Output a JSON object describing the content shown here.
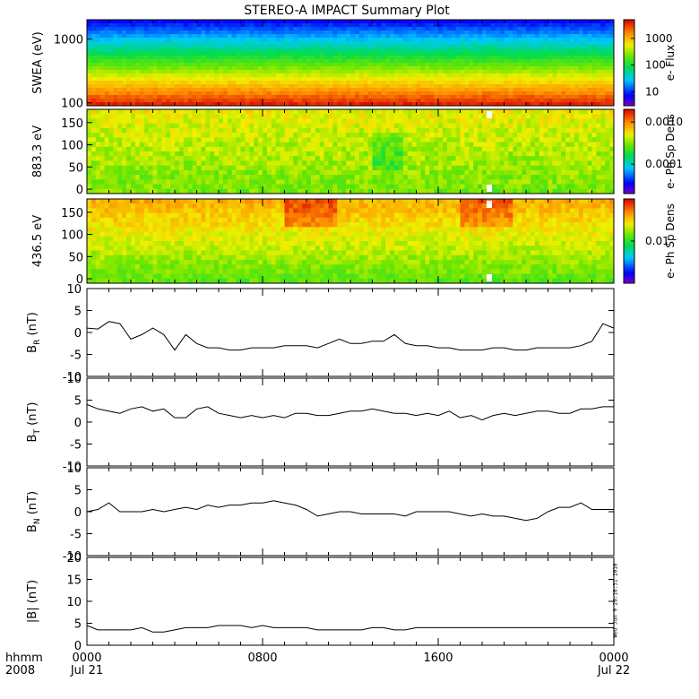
{
  "title": "STEREO-A IMPACT Summary Plot",
  "x_axis": {
    "row1_label": "hhmm",
    "row2_label": "2008",
    "ticks": [
      {
        "t": 0,
        "label": "0000",
        "date": "Jul 21"
      },
      {
        "t": 8,
        "label": "0800",
        "date": ""
      },
      {
        "t": 16,
        "label": "1600",
        "date": ""
      },
      {
        "t": 24,
        "label": "0000",
        "date": "Jul 22"
      }
    ]
  },
  "timestamp": "Wed Jun  9 20:16:31 2010",
  "chart_data": [
    {
      "type": "heatmap",
      "id": "swea",
      "ylabel": "SWEA (eV)",
      "yscale": "log",
      "ylim": [
        90,
        2000
      ],
      "yticks": [
        {
          "v": 100,
          "label": "100"
        },
        {
          "v": 1000,
          "label": "1000"
        }
      ],
      "colorbar": {
        "label": "e- Flux",
        "scale": "log",
        "range": [
          3,
          5000
        ],
        "ticks": [
          {
            "v": 10,
            "label": "10"
          },
          {
            "v": 100,
            "label": "100"
          },
          {
            "v": 1000,
            "label": "1000"
          }
        ]
      },
      "xlim": [
        0,
        24
      ]
    },
    {
      "type": "heatmap",
      "id": "pad883",
      "ylabel": "883.3 eV",
      "ylim": [
        -10,
        180
      ],
      "yticks": [
        {
          "v": 0,
          "label": "0"
        },
        {
          "v": 50,
          "label": "50"
        },
        {
          "v": 100,
          "label": "100"
        },
        {
          "v": 150,
          "label": "150"
        }
      ],
      "colorbar": {
        "label": "e- Ph Sp Dens",
        "scale": "log",
        "range": [
          2e-05,
          0.002
        ],
        "ticks": [
          {
            "v": 0.0001,
            "label": "0.0001"
          },
          {
            "v": 0.001,
            "label": "0.0010"
          }
        ]
      },
      "gap_hours": [
        18.2,
        18.45
      ],
      "xlim": [
        0,
        24
      ]
    },
    {
      "type": "heatmap",
      "id": "pad436",
      "ylabel": "436.5 eV",
      "ylim": [
        -10,
        180
      ],
      "yticks": [
        {
          "v": 0,
          "label": "0"
        },
        {
          "v": 50,
          "label": "50"
        },
        {
          "v": 100,
          "label": "100"
        },
        {
          "v": 150,
          "label": "150"
        }
      ],
      "colorbar": {
        "label": "e- Ph Sp Dens",
        "scale": "log",
        "range": [
          0.002,
          0.05
        ],
        "ticks": [
          {
            "v": 0.01,
            "label": "0.01"
          }
        ]
      },
      "gap_hours": [
        18.2,
        18.45
      ],
      "xlim": [
        0,
        24
      ]
    },
    {
      "type": "line",
      "id": "br",
      "ylabel": "B",
      "ylabel_sub": "R",
      "ylabel_unit": "(nT)",
      "ylim": [
        -10,
        10
      ],
      "yticks": [
        -10,
        -5,
        0,
        5,
        10
      ],
      "xlim": [
        0,
        24
      ],
      "x": [
        0,
        0.5,
        1,
        1.5,
        2,
        2.5,
        3,
        3.5,
        4,
        4.5,
        5,
        5.5,
        6,
        6.5,
        7,
        7.5,
        8,
        8.5,
        9,
        9.5,
        10,
        10.5,
        11,
        11.5,
        12,
        12.5,
        13,
        13.5,
        14,
        14.5,
        15,
        15.5,
        16,
        16.5,
        17,
        17.5,
        18,
        18.5,
        19,
        19.5,
        20,
        20.5,
        21,
        21.5,
        22,
        22.5,
        23,
        23.5,
        24
      ],
      "y": [
        1,
        0.8,
        2.5,
        2,
        -1.5,
        -0.5,
        1,
        -0.5,
        -4,
        -0.5,
        -2.5,
        -3.5,
        -3.5,
        -4,
        -4,
        -3.5,
        -3.5,
        -3.5,
        -3,
        -3,
        -3,
        -3.5,
        -2.5,
        -1.5,
        -2.5,
        -2.5,
        -2,
        -2,
        -0.5,
        -2.5,
        -3,
        -3,
        -3.5,
        -3.5,
        -4,
        -4,
        -4,
        -3.5,
        -3.5,
        -4,
        -4,
        -3.5,
        -3.5,
        -3.5,
        -3.5,
        -3,
        -2,
        2,
        1
      ]
    },
    {
      "type": "line",
      "id": "bt",
      "ylabel": "B",
      "ylabel_sub": "T",
      "ylabel_unit": "(nT)",
      "ylim": [
        -10,
        10
      ],
      "yticks": [
        -10,
        -5,
        0,
        5,
        10
      ],
      "xlim": [
        0,
        24
      ],
      "x": [
        0,
        0.5,
        1,
        1.5,
        2,
        2.5,
        3,
        3.5,
        4,
        4.5,
        5,
        5.5,
        6,
        6.5,
        7,
        7.5,
        8,
        8.5,
        9,
        9.5,
        10,
        10.5,
        11,
        11.5,
        12,
        12.5,
        13,
        13.5,
        14,
        14.5,
        15,
        15.5,
        16,
        16.5,
        17,
        17.5,
        18,
        18.5,
        19,
        19.5,
        20,
        20.5,
        21,
        21.5,
        22,
        22.5,
        23,
        23.5,
        24
      ],
      "y": [
        4,
        3,
        2.5,
        2,
        3,
        3.5,
        2.5,
        3,
        1,
        1,
        3,
        3.5,
        2,
        1.5,
        1,
        1.5,
        1,
        1.5,
        1,
        2,
        2,
        1.5,
        1.5,
        2,
        2.5,
        2.5,
        3,
        2.5,
        2,
        2,
        1.5,
        2,
        1.5,
        2.5,
        1,
        1.5,
        0.5,
        1.5,
        2,
        1.5,
        2,
        2.5,
        2.5,
        2,
        2,
        3,
        3,
        3.5,
        3.5
      ]
    },
    {
      "type": "line",
      "id": "bn",
      "ylabel": "B",
      "ylabel_sub": "N",
      "ylabel_unit": "(nT)",
      "ylim": [
        -10,
        10
      ],
      "yticks": [
        -10,
        -5,
        0,
        5,
        10
      ],
      "xlim": [
        0,
        24
      ],
      "x": [
        0,
        0.5,
        1,
        1.5,
        2,
        2.5,
        3,
        3.5,
        4,
        4.5,
        5,
        5.5,
        6,
        6.5,
        7,
        7.5,
        8,
        8.5,
        9,
        9.5,
        10,
        10.5,
        11,
        11.5,
        12,
        12.5,
        13,
        13.5,
        14,
        14.5,
        15,
        15.5,
        16,
        16.5,
        17,
        17.5,
        18,
        18.5,
        19,
        19.5,
        20,
        20.5,
        21,
        21.5,
        22,
        22.5,
        23,
        23.5,
        24
      ],
      "y": [
        0,
        0.5,
        2,
        0,
        0,
        0,
        0.5,
        0,
        0.5,
        1,
        0.5,
        1.5,
        1,
        1.5,
        1.5,
        2,
        2,
        2.5,
        2,
        1.5,
        0.5,
        -1,
        -0.5,
        0,
        0,
        -0.5,
        -0.5,
        -0.5,
        -0.5,
        -1,
        0,
        0,
        0,
        0,
        -0.5,
        -1,
        -0.5,
        -1,
        -1,
        -1.5,
        -2,
        -1.5,
        0,
        1,
        1,
        2,
        0.5,
        0.5,
        0.5
      ]
    },
    {
      "type": "line",
      "id": "bmag",
      "ylabel": "|B|",
      "ylabel_unit": "(nT)",
      "ylim": [
        0,
        20
      ],
      "yticks": [
        0,
        5,
        10,
        15,
        20
      ],
      "xlim": [
        0,
        24
      ],
      "x": [
        0,
        0.5,
        1,
        1.5,
        2,
        2.5,
        3,
        3.5,
        4,
        4.5,
        5,
        5.5,
        6,
        6.5,
        7,
        7.5,
        8,
        8.5,
        9,
        9.5,
        10,
        10.5,
        11,
        11.5,
        12,
        12.5,
        13,
        13.5,
        14,
        14.5,
        15,
        15.5,
        16,
        16.5,
        17,
        17.5,
        18,
        18.5,
        19,
        19.5,
        20,
        20.5,
        21,
        21.5,
        22,
        22.5,
        23,
        23.5,
        24
      ],
      "y": [
        4.5,
        3.5,
        3.5,
        3.5,
        3.5,
        4,
        3,
        3,
        3.5,
        4,
        4,
        4,
        4.5,
        4.5,
        4.5,
        4,
        4.5,
        4,
        4,
        4,
        4,
        3.5,
        3.5,
        3.5,
        3.5,
        3.5,
        4,
        4,
        3.5,
        3.5,
        4,
        4,
        4,
        4,
        4,
        4,
        4,
        4,
        4,
        4,
        4,
        4,
        4,
        4,
        4,
        4,
        4,
        4,
        4
      ]
    }
  ]
}
